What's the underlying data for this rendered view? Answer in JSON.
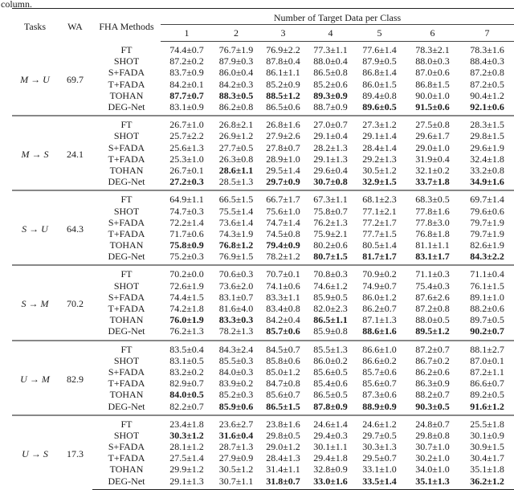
{
  "caption_fragment": "column.",
  "header": {
    "tasks": "Tasks",
    "wa": "WA",
    "methods": "FHA Methods",
    "span": "Number of Target Data per Class",
    "cols": [
      "1",
      "2",
      "3",
      "4",
      "5",
      "6",
      "7"
    ]
  },
  "blocks": [
    {
      "task": "M → U",
      "wa": "69.7",
      "rows": [
        {
          "method": "FT",
          "values": [
            "74.4±0.7",
            "76.7±1.9",
            "76.9±2.2",
            "77.3±1.1",
            "77.6±1.4",
            "78.3±2.1",
            "78.3±1.6"
          ],
          "bold": []
        },
        {
          "method": "SHOT",
          "values": [
            "87.2±0.2",
            "87.9±0.3",
            "87.8±0.4",
            "88.0±0.4",
            "87.9±0.5",
            "88.0±0.3",
            "88.4±0.3"
          ],
          "bold": []
        },
        {
          "method": "S+FADA",
          "values": [
            "83.7±0.9",
            "86.0±0.4",
            "86.1±1.1",
            "86.5±0.8",
            "86.8±1.4",
            "87.0±0.6",
            "87.2±0.8"
          ],
          "bold": []
        },
        {
          "method": "T+FADA",
          "values": [
            "84.2±0.1",
            "84.2±0.3",
            "85.2±0.9",
            "85.2±0.6",
            "86.0±1.5",
            "86.8±1.5",
            "87.2±0.5"
          ],
          "bold": []
        },
        {
          "method": "TOHAN",
          "values": [
            "87.7±0.7",
            "88.3±0.5",
            "88.5±1.2",
            "89.3±0.9",
            "89.4±0.8",
            "90.0±1.0",
            "90.4±1.2"
          ],
          "bold": [
            0,
            1,
            2,
            3
          ]
        },
        {
          "method": "DEG-Net",
          "values": [
            "83.1±0.9",
            "86.2±0.8",
            "86.5±0.6",
            "88.7±0.9",
            "89.6±0.5",
            "91.5±0.6",
            "92.1±0.6"
          ],
          "bold": [
            4,
            5,
            6
          ]
        }
      ]
    },
    {
      "task": "M → S",
      "wa": "24.1",
      "rows": [
        {
          "method": "FT",
          "values": [
            "26.7±1.0",
            "26.8±2.1",
            "26.8±1.6",
            "27.0±0.7",
            "27.3±1.2",
            "27.5±0.8",
            "28.3±1.5"
          ],
          "bold": []
        },
        {
          "method": "SHOT",
          "values": [
            "25.7±2.2",
            "26.9±1.2",
            "27.9±2.6",
            "29.1±0.4",
            "29.1±1.4",
            "29.6±1.7",
            "29.8±1.5"
          ],
          "bold": []
        },
        {
          "method": "S+FADA",
          "values": [
            "25.6±1.3",
            "27.7±0.5",
            "27.8±0.7",
            "28.2±1.3",
            "28.4±1.4",
            "29.0±1.0",
            "29.6±1.9"
          ],
          "bold": []
        },
        {
          "method": "T+FADA",
          "values": [
            "25.3±1.0",
            "26.3±0.8",
            "28.9±1.0",
            "29.1±1.3",
            "29.2±1.3",
            "31.9±0.4",
            "32.4±1.8"
          ],
          "bold": []
        },
        {
          "method": "TOHAN",
          "values": [
            "26.7±0.1",
            "28.6±1.1",
            "29.5±1.4",
            "29.6±0.4",
            "30.5±1.2",
            "32.1±0.2",
            "33.2±0.8"
          ],
          "bold": [
            1
          ]
        },
        {
          "method": "DEG-Net",
          "values": [
            "27.2±0.3",
            "28.5±1.3",
            "29.7±0.9",
            "30.7±0.8",
            "32.9±1.5",
            "33.7±1.8",
            "34.9±1.6"
          ],
          "bold": [
            0,
            2,
            3,
            4,
            5,
            6
          ]
        }
      ]
    },
    {
      "task": "S → U",
      "wa": "64.3",
      "rows": [
        {
          "method": "FT",
          "values": [
            "64.9±1.1",
            "66.5±1.5",
            "66.7±1.7",
            "67.3±1.1",
            "68.1±2.3",
            "68.3±0.5",
            "69.7±1.4"
          ],
          "bold": []
        },
        {
          "method": "SHOT",
          "values": [
            "74.7±0.3",
            "75.5±1.4",
            "75.6±1.0",
            "75.8±0.7",
            "77.1±2.1",
            "77.8±1.6",
            "79.6±0.6"
          ],
          "bold": []
        },
        {
          "method": "S+FADA",
          "values": [
            "72.2±1.4",
            "73.6±1.4",
            "74.7±1.4",
            "76.2±1.3",
            "77.2±1.7",
            "77.8±3.0",
            "79.7±1.9"
          ],
          "bold": []
        },
        {
          "method": "T+FADA",
          "values": [
            "71.7±0.6",
            "74.3±1.9",
            "74.5±0.8",
            "75.9±2.1",
            "77.7±1.5",
            "76.8±1.8",
            "79.7±1.9"
          ],
          "bold": []
        },
        {
          "method": "TOHAN",
          "values": [
            "75.8±0.9",
            "76.8±1.2",
            "79.4±0.9",
            "80.2±0.6",
            "80.5±1.4",
            "81.1±1.1",
            "82.6±1.9"
          ],
          "bold": [
            0,
            1,
            2
          ]
        },
        {
          "method": "DEG-Net",
          "values": [
            "75.2±0.3",
            "76.9±1.5",
            "78.2±1.2",
            "80.7±1.5",
            "81.7±1.7",
            "83.1±1.7",
            "84.3±2.2"
          ],
          "bold": [
            3,
            4,
            5,
            6
          ]
        }
      ]
    },
    {
      "task": "S → M",
      "wa": "70.2",
      "rows": [
        {
          "method": "FT",
          "values": [
            "70.2±0.0",
            "70.6±0.3",
            "70.7±0.1",
            "70.8±0.3",
            "70.9±0.2",
            "71.1±0.3",
            "71.1±0.4"
          ],
          "bold": []
        },
        {
          "method": "SHOT",
          "values": [
            "72.6±1.9",
            "73.6±2.0",
            "74.1±0.6",
            "74.6±1.2",
            "74.9±0.7",
            "75.4±0.3",
            "76.1±1.5"
          ],
          "bold": []
        },
        {
          "method": "S+FADA",
          "values": [
            "74.4±1.5",
            "83.1±0.7",
            "83.3±1.1",
            "85.9±0.5",
            "86.0±1.2",
            "87.6±2.6",
            "89.1±1.0"
          ],
          "bold": []
        },
        {
          "method": "T+FADA",
          "values": [
            "74.2±1.8",
            "81.6±4.0",
            "83.4±0.8",
            "82.0±2.3",
            "86.2±0.7",
            "87.2±0.8",
            "88.2±0.6"
          ],
          "bold": []
        },
        {
          "method": "TOHAN",
          "values": [
            "76.0±1.9",
            "83.3±0.3",
            "84.2±0.4",
            "86.5±1.1",
            "87.1±1.3",
            "88.0±0.5",
            "89.7±0.5"
          ],
          "bold": [
            0,
            1,
            3
          ]
        },
        {
          "method": "DEG-Net",
          "values": [
            "76.2±1.3",
            "78.2±1.3",
            "85.7±0.6",
            "85.9±0.8",
            "88.6±1.6",
            "89.5±1.2",
            "90.2±0.7"
          ],
          "bold": [
            2,
            4,
            5,
            6
          ]
        }
      ]
    },
    {
      "task": "U → M",
      "wa": "82.9",
      "rows": [
        {
          "method": "FT",
          "values": [
            "83.5±0.4",
            "84.3±2.4",
            "84.5±0.7",
            "85.5±1.3",
            "86.6±1.0",
            "87.2±0.7",
            "88.1±2.7"
          ],
          "bold": []
        },
        {
          "method": "SHOT",
          "values": [
            "83.1±0.5",
            "85.5±0.3",
            "85.8±0.6",
            "86.0±0.2",
            "86.6±0.2",
            "86.7±0.2",
            "87.0±0.1"
          ],
          "bold": []
        },
        {
          "method": "S+FADA",
          "values": [
            "83.2±0.2",
            "84.0±0.3",
            "85.0±1.2",
            "85.6±0.5",
            "85.7±0.6",
            "86.2±0.6",
            "87.2±1.1"
          ],
          "bold": []
        },
        {
          "method": "T+FADA",
          "values": [
            "82.9±0.7",
            "83.9±0.2",
            "84.7±0.8",
            "85.4±0.6",
            "85.6±0.7",
            "86.3±0.9",
            "86.6±0.7"
          ],
          "bold": []
        },
        {
          "method": "TOHAN",
          "values": [
            "84.0±0.5",
            "85.2±0.3",
            "85.6±0.7",
            "86.5±0.5",
            "87.3±0.6",
            "88.2±0.7",
            "89.2±0.5"
          ],
          "bold": [
            0
          ]
        },
        {
          "method": "DEG-Net",
          "values": [
            "82.2±0.7",
            "85.9±0.6",
            "86.5±1.5",
            "87.8±0.9",
            "88.9±0.9",
            "90.3±0.5",
            "91.6±1.2"
          ],
          "bold": [
            1,
            2,
            3,
            4,
            5,
            6
          ]
        }
      ]
    },
    {
      "task": "U → S",
      "wa": "17.3",
      "rows": [
        {
          "method": "FT",
          "values": [
            "23.4±1.8",
            "23.6±2.7",
            "23.8±1.6",
            "24.6±1.4",
            "24.6±1.2",
            "24.8±0.7",
            "25.5±1.8"
          ],
          "bold": []
        },
        {
          "method": "SHOT",
          "values": [
            "30.3±1.2",
            "31.6±0.4",
            "29.8±0.5",
            "29.4±0.3",
            "29.7±0.5",
            "29.8±0.8",
            "30.1±0.9"
          ],
          "bold": [
            0,
            1
          ]
        },
        {
          "method": "S+FADA",
          "values": [
            "28.1±1.2",
            "28.7±1.3",
            "29.0±1.2",
            "30.1±1.1",
            "30.3±1.3",
            "30.7±1.0",
            "30.9±1.5"
          ],
          "bold": []
        },
        {
          "method": "T+FADA",
          "values": [
            "27.5±1.4",
            "27.9±0.9",
            "28.4±1.3",
            "29.4±1.8",
            "29.5±0.7",
            "30.2±1.0",
            "30.4±1.7"
          ],
          "bold": []
        },
        {
          "method": "TOHAN",
          "values": [
            "29.9±1.2",
            "30.5±1.2",
            "31.4±1.1",
            "32.8±0.9",
            "33.1±1.0",
            "34.0±1.0",
            "35.1±1.8"
          ],
          "bold": []
        },
        {
          "method": "DEG-Net",
          "values": [
            "29.1±1.3",
            "30.7±1.1",
            "31.8±0.7",
            "33.0±1.6",
            "33.5±1.4",
            "35.1±1.3",
            "36.2±1.2"
          ],
          "bold": [
            2,
            3,
            4,
            5,
            6
          ]
        }
      ]
    }
  ]
}
